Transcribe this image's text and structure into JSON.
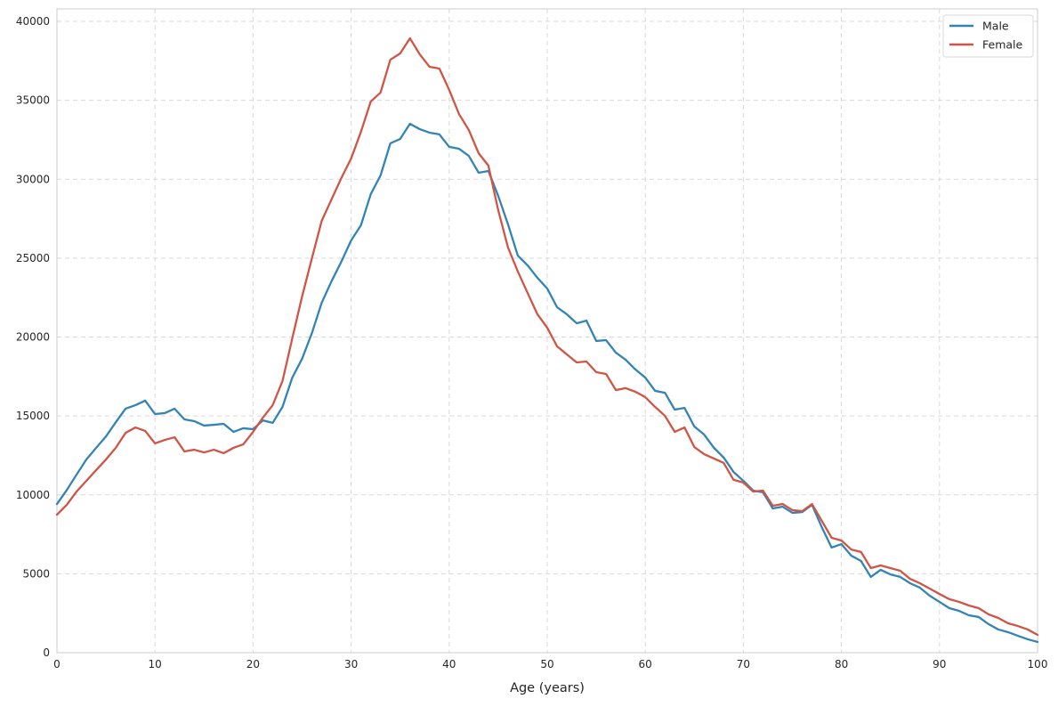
{
  "chart_data": {
    "type": "line",
    "title": "",
    "xlabel": "Age (years)",
    "ylabel": "",
    "xlim": [
      0,
      100
    ],
    "ylim": [
      0,
      40800
    ],
    "xticks": [
      0,
      10,
      20,
      30,
      40,
      50,
      60,
      70,
      80,
      90,
      100
    ],
    "xtick_labels": [
      "0",
      "10",
      "20",
      "30",
      "40",
      "50",
      "60",
      "70",
      "80",
      "90",
      "100"
    ],
    "yticks": [
      0,
      5000,
      10000,
      15000,
      20000,
      25000,
      30000,
      35000,
      40000
    ],
    "ytick_labels": [
      "0",
      "5000",
      "10000",
      "15000",
      "20000",
      "25000",
      "30000",
      "35000",
      "40000"
    ],
    "grid": true,
    "grid_style": "dashed",
    "legend_position": "upper right",
    "legend": [
      "Male",
      "Female"
    ],
    "x": [
      0,
      1,
      2,
      3,
      4,
      5,
      6,
      7,
      8,
      9,
      10,
      11,
      12,
      13,
      14,
      15,
      16,
      17,
      18,
      19,
      20,
      21,
      22,
      23,
      24,
      25,
      26,
      27,
      28,
      29,
      30,
      31,
      32,
      33,
      34,
      35,
      36,
      37,
      38,
      39,
      40,
      41,
      42,
      43,
      44,
      45,
      46,
      47,
      48,
      49,
      50,
      51,
      52,
      53,
      54,
      55,
      56,
      57,
      58,
      59,
      60,
      61,
      62,
      63,
      64,
      65,
      66,
      67,
      68,
      69,
      70,
      71,
      72,
      73,
      74,
      75,
      76,
      77,
      78,
      79,
      80,
      81,
      82,
      83,
      84,
      85,
      86,
      87,
      88,
      89,
      90,
      91,
      92,
      93,
      94,
      95,
      96,
      97,
      98,
      99,
      100
    ],
    "series": [
      {
        "name": "Male",
        "color": "#3384b5",
        "values": [
          9420,
          10300,
          11280,
          12240,
          12980,
          13700,
          14600,
          15460,
          15680,
          15970,
          15120,
          15180,
          15460,
          14780,
          14670,
          14390,
          14440,
          14500,
          13990,
          14220,
          14160,
          14720,
          14560,
          15570,
          17430,
          18620,
          20250,
          22170,
          23530,
          24770,
          26120,
          27080,
          29050,
          30240,
          32270,
          32550,
          33510,
          33170,
          32950,
          32840,
          32050,
          31930,
          31480,
          30410,
          30520,
          28940,
          27140,
          25160,
          24540,
          23750,
          23070,
          21890,
          21440,
          20870,
          21040,
          19750,
          19800,
          19010,
          18560,
          17940,
          17430,
          16590,
          16470,
          15400,
          15510,
          14330,
          13820,
          12980,
          12360,
          11450,
          10890,
          10270,
          10160,
          9140,
          9250,
          8860,
          8910,
          9370,
          7950,
          6660,
          6880,
          6150,
          5810,
          4800,
          5250,
          4960,
          4800,
          4400,
          4120,
          3610,
          3220,
          2820,
          2650,
          2370,
          2260,
          1810,
          1470,
          1300,
          1070,
          850,
          680
        ]
      },
      {
        "name": "Female",
        "color": "#d05545",
        "values": [
          8740,
          9370,
          10210,
          10890,
          11570,
          12240,
          12980,
          13930,
          14270,
          14050,
          13260,
          13480,
          13650,
          12750,
          12860,
          12690,
          12860,
          12640,
          12980,
          13200,
          13990,
          14890,
          15680,
          17210,
          19920,
          22570,
          24990,
          27360,
          28720,
          30070,
          31310,
          33000,
          34920,
          35490,
          37570,
          37970,
          38930,
          37910,
          37120,
          37010,
          35660,
          34130,
          33120,
          31650,
          30860,
          28040,
          25670,
          24150,
          22790,
          21440,
          20590,
          19410,
          18900,
          18390,
          18450,
          17770,
          17660,
          16640,
          16760,
          16530,
          16190,
          15570,
          15010,
          13990,
          14270,
          13030,
          12580,
          12300,
          12020,
          10950,
          10780,
          10210,
          10270,
          9310,
          9420,
          9030,
          8970,
          9420,
          8350,
          7280,
          7110,
          6540,
          6380,
          5360,
          5530,
          5360,
          5190,
          4680,
          4400,
          4060,
          3720,
          3390,
          3220,
          2990,
          2820,
          2430,
          2200,
          1860,
          1690,
          1470,
          1130
        ]
      }
    ]
  },
  "legend": {
    "items": [
      {
        "label": "Male",
        "color": "#3384b5"
      },
      {
        "label": "Female",
        "color": "#d05545"
      }
    ]
  },
  "axes": {
    "xlabel": "Age (years)"
  }
}
